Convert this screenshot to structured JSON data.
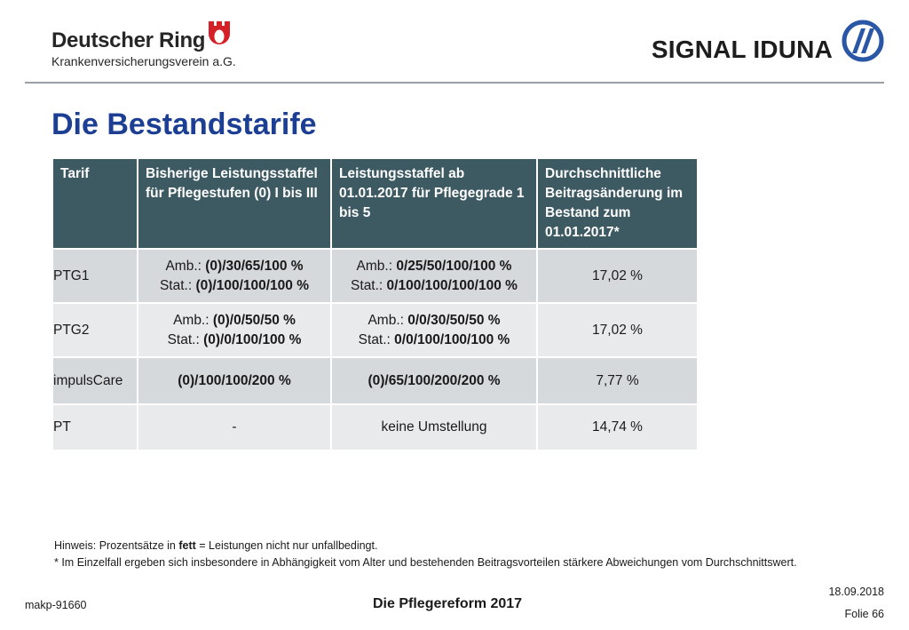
{
  "header": {
    "brand_name": "Deutscher Ring",
    "brand_sub": "Krankenversicherungsverein a.G.",
    "partner_name": "SIGNAL IDUNA"
  },
  "colors": {
    "title_blue": "#1c3f94",
    "table_header_bg": "#3d5a63",
    "row_dark": "#d6d9db",
    "row_light": "#e9eaeb",
    "crest_red": "#d42027",
    "signal_blue": "#2a56a6"
  },
  "icons": {
    "crest": "deutscher-ring-crest-icon",
    "signal": "signal-iduna-logo-icon"
  },
  "title": "Die Bestandstarife",
  "table": {
    "headers": [
      "Tarif",
      "Bisherige Leistungsstaffel für Pflegestufen (0) I bis III",
      "Leistungsstaffel ab 01.01.2017 für Pflegegrade 1 bis 5",
      "Durchschnittliche Beitragsänderung im Bestand zum 01.01.2017*"
    ],
    "rows": [
      {
        "tarif": "PTG1",
        "bisher_amb_prefix": "Amb.: ",
        "bisher_amb_value": "(0)/30/65/100 %",
        "bisher_stat_prefix": "Stat.: ",
        "bisher_stat_value": "(0)/100/100/100 %",
        "neu_amb_prefix": "Amb.: ",
        "neu_amb_value": "0/25/50/100/100 %",
        "neu_stat_prefix": "Stat.: ",
        "neu_stat_value": "0/100/100/100/100 %",
        "change": "17,02 %"
      },
      {
        "tarif": "PTG2",
        "bisher_amb_prefix": "Amb.: ",
        "bisher_amb_value": "(0)/0/50/50 %",
        "bisher_stat_prefix": "Stat.: ",
        "bisher_stat_value": "(0)/0/100/100 %",
        "neu_amb_prefix": "Amb.: ",
        "neu_amb_value": "0/0/30/50/50 %",
        "neu_stat_prefix": "Stat.: ",
        "neu_stat_value": "0/0/100/100/100 %",
        "change": "17,02 %"
      },
      {
        "tarif": "impulsCare",
        "bisher": "(0)/100/100/200 %",
        "neu": "(0)/65/100/200/200 %",
        "change": "7,77 %"
      },
      {
        "tarif": "PT",
        "bisher": "-",
        "neu": "keine Umstellung",
        "change": "14,74 %"
      }
    ]
  },
  "notes": {
    "hint_prefix": "Hinweis: Prozentsätze in ",
    "hint_bold": "fett",
    "hint_suffix": " = Leistungen nicht nur unfallbedingt.",
    "footnote": "* Im Einzelfall ergeben sich insbesondere in Abhängigkeit vom Alter und bestehenden Beitragsvorteilen stärkere Abweichungen vom Durchschnittswert."
  },
  "footer": {
    "doc_id": "makp-91660",
    "presentation_title": "Die Pflegereform 2017",
    "date": "18.09.2018",
    "slide_label": "Folie 66"
  }
}
